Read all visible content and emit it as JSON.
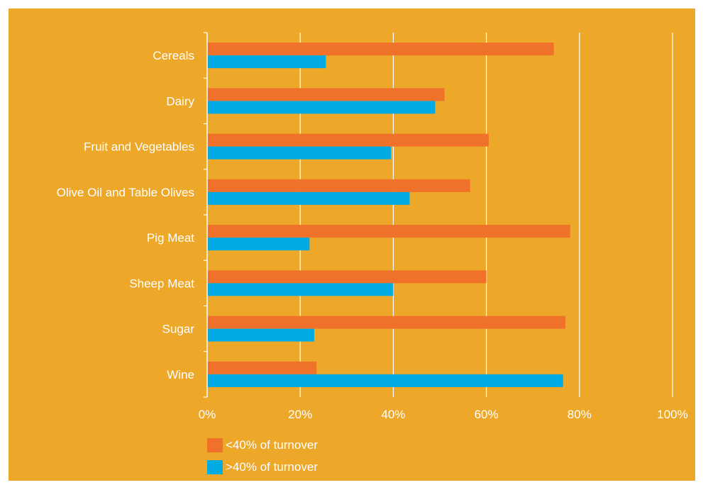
{
  "colors": {
    "background": "#EDA729",
    "series_under": "#F07129",
    "series_over": "#00ABE3",
    "axis": "#FFFFFF"
  },
  "legend": {
    "items": [
      {
        "label": "<40% of turnover",
        "color": "#F07129"
      },
      {
        "label": ">40% of turnover",
        "color": "#00ABE3"
      }
    ]
  },
  "chart_data": {
    "type": "bar",
    "orientation": "horizontal",
    "categories": [
      "Cereals",
      "Dairy",
      "Fruit and Vegetables",
      "Olive Oil and Table Olives",
      "Pig Meat",
      "Sheep Meat",
      "Sugar",
      "Wine"
    ],
    "series": [
      {
        "name": "<40% of turnover",
        "values": [
          74.5,
          51,
          60.5,
          56.5,
          78,
          60,
          77,
          23.5
        ]
      },
      {
        "name": ">40% of turnover",
        "values": [
          25.5,
          49,
          39.5,
          43.5,
          22,
          40,
          23,
          76.5
        ]
      }
    ],
    "xlim": [
      0,
      100
    ],
    "xticks": [
      "0%",
      "20%",
      "40%",
      "60%",
      "80%",
      "100%"
    ],
    "xtick_values": [
      0,
      20,
      40,
      60,
      80,
      100
    ],
    "grid": true,
    "legend_position": "bottom-left"
  }
}
